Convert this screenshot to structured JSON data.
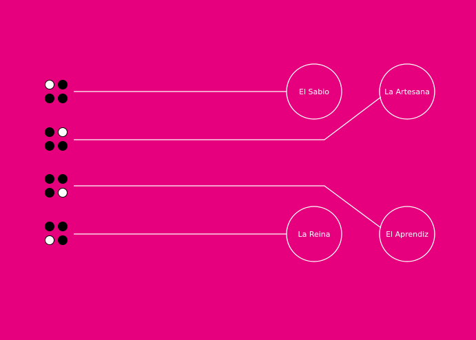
{
  "colors": {
    "background": "#E6007E",
    "line": "#ffffff",
    "dot_filled": "#000000",
    "dot_empty": "#ffffff"
  },
  "rows": [
    {
      "pattern": [
        0,
        1,
        1,
        1
      ],
      "target": "El Sabio"
    },
    {
      "pattern": [
        1,
        0,
        1,
        1
      ],
      "target": "La Artesana"
    },
    {
      "pattern": [
        1,
        1,
        1,
        0
      ],
      "target": "El Aprendiz"
    },
    {
      "pattern": [
        1,
        1,
        0,
        1
      ],
      "target": "La Reina"
    }
  ],
  "nodes": [
    {
      "id": "el-sabio",
      "label": "El Sabio"
    },
    {
      "id": "la-artesana",
      "label": "La Artesana"
    },
    {
      "id": "la-reina",
      "label": "La Reina"
    },
    {
      "id": "el-aprendiz",
      "label": "El Aprendiz"
    }
  ]
}
